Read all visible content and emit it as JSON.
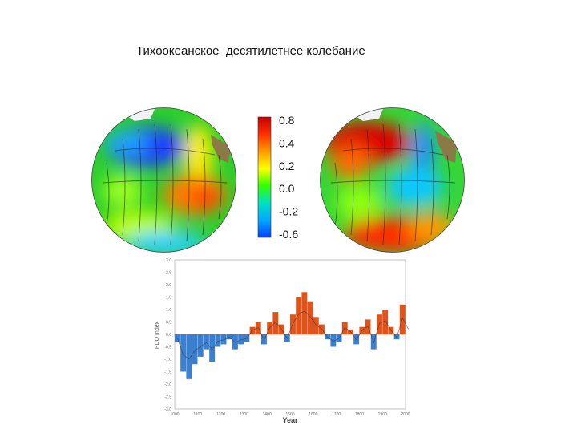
{
  "slide": {
    "title": "Тихоокеанское  десятилетнее колебание"
  },
  "colorbar": {
    "ticks": [
      "0.8",
      "0.4",
      "0.2",
      "0.0",
      "-0.2",
      "-0.6"
    ],
    "colors": [
      "#c40000",
      "#ff3000",
      "#ff9a00",
      "#ffff00",
      "#33ff00",
      "#00e0c0",
      "#00a8ff",
      "#0040ff"
    ]
  },
  "globes": {
    "left_phase": "negative",
    "right_phase": "positive"
  },
  "chart_data": {
    "type": "area",
    "xlabel": "Year",
    "ylabel": "PDO Index",
    "xlim": [
      1000,
      2000
    ],
    "ylim": [
      -3.0,
      3.0
    ],
    "x_ticks": [
      "1000",
      "1100",
      "1200",
      "1300",
      "1400",
      "1500",
      "1600",
      "1700",
      "1800",
      "1900",
      "2000"
    ],
    "y_ticks": [
      "3.0",
      "2.5",
      "2.0",
      "1.5",
      "1.0",
      "0.5",
      "0.0",
      "-0.5",
      "-1.0",
      "-1.5",
      "-2.0",
      "-2.5",
      "-3.0"
    ],
    "positive_color": "#e0541c",
    "negative_color": "#3a7fd0",
    "series": [
      {
        "x": [
          1000,
          1025,
          1050,
          1075,
          1100,
          1125,
          1150,
          1175,
          1200,
          1225,
          1250,
          1275,
          1300,
          1325,
          1350,
          1375,
          1400,
          1425,
          1450,
          1475,
          1500,
          1525,
          1550,
          1575,
          1600,
          1625,
          1650,
          1675,
          1700,
          1725,
          1750,
          1775,
          1800,
          1825,
          1850,
          1875,
          1900,
          1925,
          1950,
          1975,
          2000
        ],
        "y": [
          -0.3,
          -1.5,
          -1.8,
          -1.2,
          -0.9,
          -0.6,
          -1.1,
          -0.5,
          -0.4,
          -0.2,
          -0.6,
          -0.4,
          -0.3,
          0.3,
          0.5,
          -0.4,
          0.5,
          0.9,
          0.4,
          -0.3,
          0.8,
          1.5,
          1.7,
          1.3,
          0.7,
          0.4,
          -0.2,
          -0.5,
          -0.3,
          0.5,
          0.2,
          -0.4,
          0.3,
          0.6,
          -0.6,
          0.8,
          1.0,
          0.3,
          -0.2,
          1.2,
          0.4
        ]
      }
    ]
  }
}
